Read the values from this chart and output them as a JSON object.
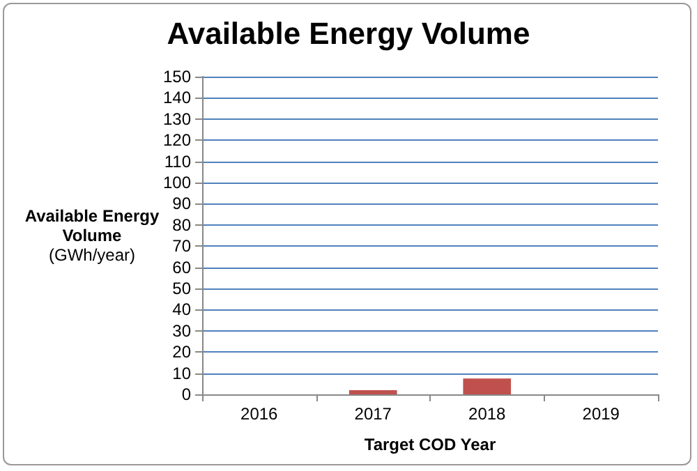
{
  "chart_data": {
    "type": "bar",
    "title": "Available Energy Volume",
    "xlabel": "Target COD Year",
    "ylabel": "Available Energy Volume (GWh/year)",
    "categories": [
      "2016",
      "2017",
      "2018",
      "2019"
    ],
    "values": [
      0,
      2,
      7.5,
      0
    ],
    "color": "#c0504d",
    "ylim": [
      0,
      150
    ],
    "yticks": [
      0,
      10,
      20,
      30,
      40,
      50,
      60,
      70,
      80,
      90,
      100,
      110,
      120,
      130,
      140,
      150
    ],
    "grid": "y"
  }
}
